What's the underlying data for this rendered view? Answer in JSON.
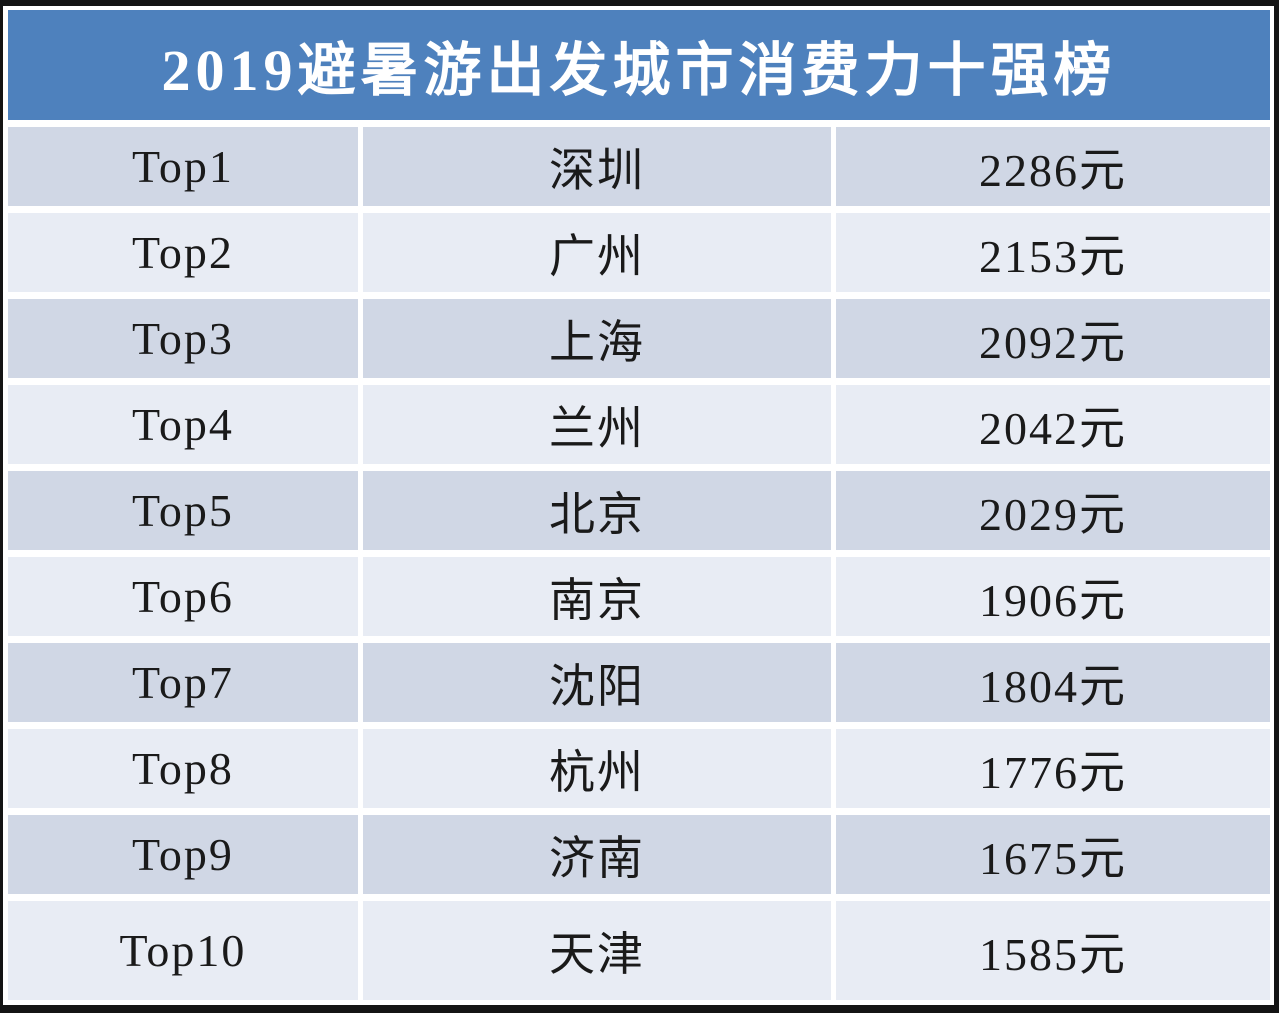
{
  "title": "2019避暑游出发城市消费力十强榜",
  "colors": {
    "frame": "#141414",
    "gap": "#ffffff",
    "title_bg": "#4e81bd",
    "title_text": "#ffffff",
    "row_dark": "#d0d7e5",
    "row_light": "#e8ecf4",
    "cell_text": "#1a1a1a"
  },
  "chart_data": {
    "type": "table",
    "title": "2019避暑游出发城市消费力十强榜",
    "unit": "元",
    "rows": [
      {
        "rank": "Top1",
        "city": "深圳",
        "spend": "2286元"
      },
      {
        "rank": "Top2",
        "city": "广州",
        "spend": "2153元"
      },
      {
        "rank": "Top3",
        "city": "上海",
        "spend": "2092元"
      },
      {
        "rank": "Top4",
        "city": "兰州",
        "spend": "2042元"
      },
      {
        "rank": "Top5",
        "city": "北京",
        "spend": "2029元"
      },
      {
        "rank": "Top6",
        "city": "南京",
        "spend": "1906元"
      },
      {
        "rank": "Top7",
        "city": "沈阳",
        "spend": "1804元"
      },
      {
        "rank": "Top8",
        "city": "杭州",
        "spend": "1776元"
      },
      {
        "rank": "Top9",
        "city": "济南",
        "spend": "1675元"
      },
      {
        "rank": "Top10",
        "city": "天津",
        "spend": "1585元"
      }
    ],
    "values": [
      2286,
      2153,
      2092,
      2042,
      2029,
      1906,
      1804,
      1776,
      1675,
      1585
    ],
    "layout": {
      "columns": 3,
      "alternating_row_shading": true,
      "header_band": "title-only"
    }
  }
}
